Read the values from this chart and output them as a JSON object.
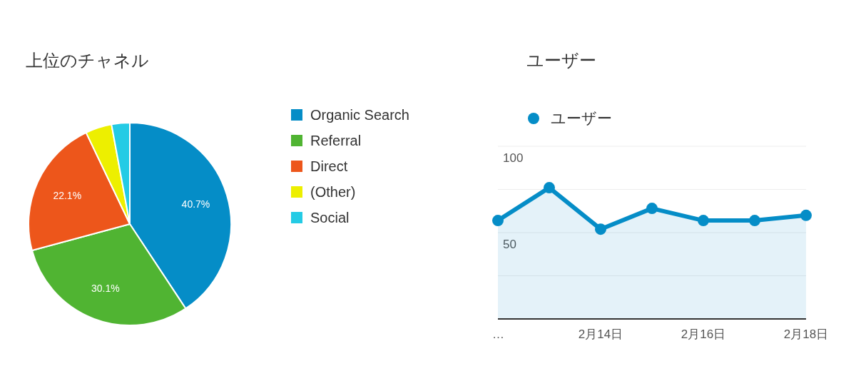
{
  "chart_data": [
    {
      "type": "pie",
      "title": "上位のチャネル",
      "categories": [
        "Organic Search",
        "Referral",
        "Direct",
        "(Other)",
        "Social"
      ],
      "values": [
        40.7,
        30.1,
        22.1,
        4.2,
        2.9
      ],
      "colors": [
        "#058dc7",
        "#50b432",
        "#ed561b",
        "#edef00",
        "#24cbe5"
      ],
      "value_labels": [
        "40.7%",
        "30.1%",
        "22.1%",
        null,
        null
      ],
      "legend": "right"
    },
    {
      "type": "area",
      "title": "ユーザー",
      "categories": [
        "…",
        null,
        "2月14日",
        null,
        "2月16日",
        null,
        "2月18日"
      ],
      "series": [
        {
          "name": "ユーザー",
          "color": "#058dc7",
          "values": [
            57,
            76,
            52,
            64,
            57,
            57,
            60
          ]
        }
      ],
      "ylim": [
        0,
        100
      ],
      "yticks": [
        {
          "value": 0,
          "label": null
        },
        {
          "value": 25,
          "label": null
        },
        50,
        {
          "value": 75,
          "label": null
        },
        100
      ],
      "grid": "y",
      "legend": "top left",
      "marker": "circle"
    }
  ]
}
